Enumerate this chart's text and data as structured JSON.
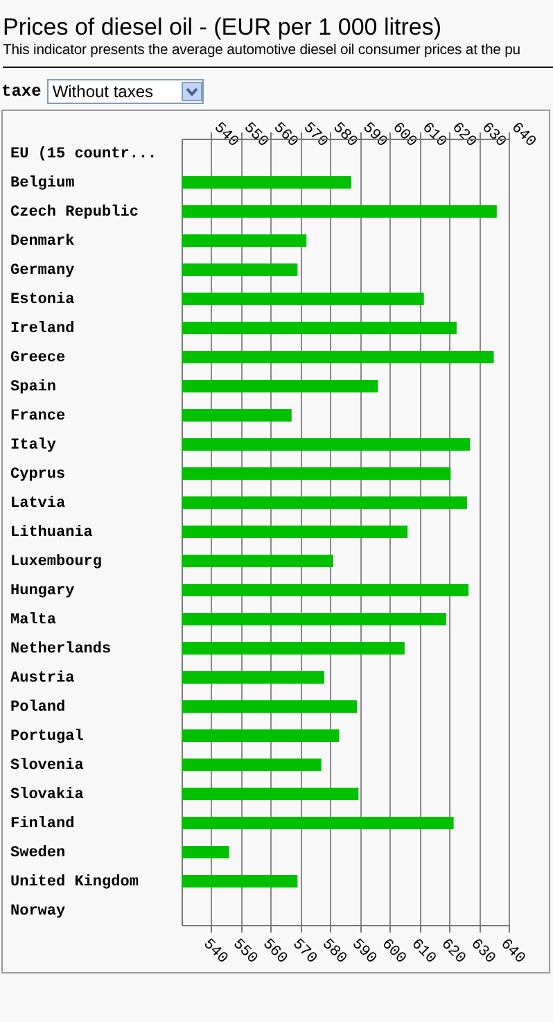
{
  "chart_data": {
    "type": "bar",
    "orientation": "horizontal",
    "title": "Prices of diesel oil - (EUR per 1 000 litres)",
    "subtitle": "This indicator presents the average automotive diesel oil consumer prices at the pu",
    "annotations": [
      "taxe",
      "Without taxes"
    ],
    "categories": [
      "EU (15 countr...",
      "Belgium",
      "Czech Republic",
      "Denmark",
      "Germany",
      "Estonia",
      "Ireland",
      "Greece",
      "Spain",
      "France",
      "Italy",
      "Cyprus",
      "Latvia",
      "Lithuania",
      "Luxembourg",
      "Hungary",
      "Malta",
      "Netherlands",
      "Austria",
      "Poland",
      "Portugal",
      "Slovenia",
      "Slovakia",
      "Finland",
      "Sweden",
      "United Kingdom",
      "Norway"
    ],
    "values": [
      null,
      587,
      636,
      572,
      569,
      611.5,
      622.5,
      635,
      596,
      567,
      627,
      620.5,
      626,
      606,
      581,
      626.5,
      619,
      605,
      578,
      589,
      583,
      577,
      589.5,
      621.5,
      546,
      569,
      null
    ],
    "color": "#00c000",
    "xlim": [
      530,
      640
    ],
    "xticks": [
      540,
      550,
      560,
      570,
      580,
      590,
      600,
      610,
      620,
      630,
      640
    ],
    "x2lim": [
      530,
      640
    ],
    "x2ticks": [
      540,
      550,
      560,
      570,
      580,
      590,
      600,
      610,
      620,
      630,
      640
    ],
    "grid": "x"
  }
}
